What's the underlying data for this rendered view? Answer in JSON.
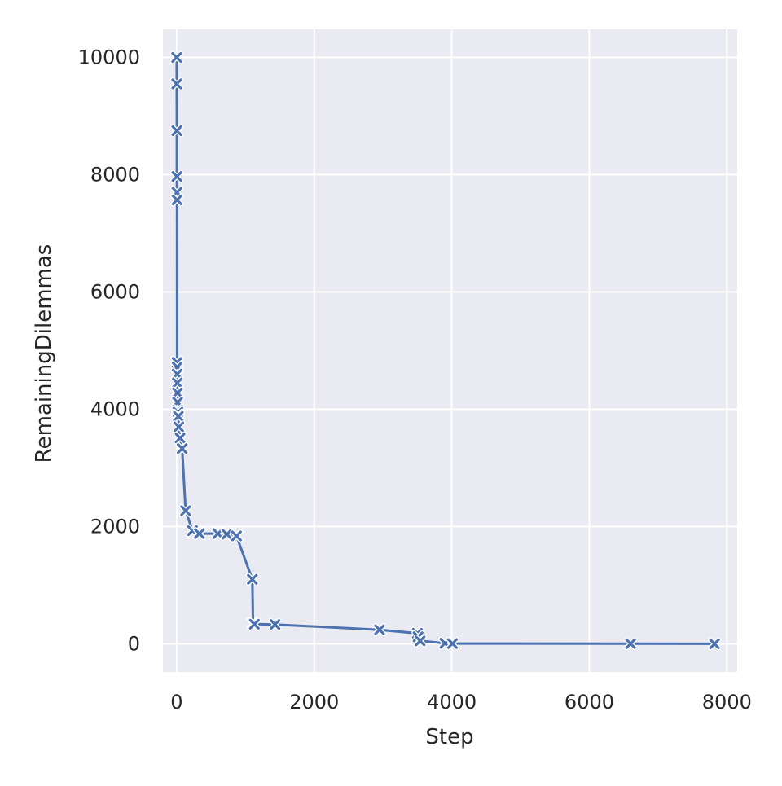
{
  "chart_data": {
    "type": "line",
    "xlabel": "Step",
    "ylabel": "RemainingDilemmas",
    "xlim": [
      -200,
      8150
    ],
    "ylim": [
      -480,
      10480
    ],
    "xticks": [
      0,
      2000,
      4000,
      6000,
      8000
    ],
    "yticks": [
      0,
      2000,
      4000,
      6000,
      8000,
      10000
    ],
    "grid": true,
    "marker": "x",
    "colors": {
      "line": "#4c72b0",
      "plot_background": "#eaeaf2",
      "grid": "#ffffff"
    },
    "series": [
      {
        "x": [
          0,
          1,
          2,
          3,
          4,
          5,
          6,
          7,
          8,
          10,
          12,
          14,
          16,
          18,
          20,
          25,
          30,
          50,
          80,
          130,
          230,
          330,
          600,
          730,
          870,
          1100,
          1110,
          1120,
          1130,
          1430,
          2950,
          3500,
          3510,
          3540,
          3900,
          4010,
          6600,
          7820
        ],
        "y": [
          10000,
          9550,
          8750,
          7970,
          7700,
          7570,
          4800,
          4720,
          4600,
          4450,
          4280,
          4120,
          3980,
          3950,
          3900,
          3880,
          3700,
          3510,
          3330,
          2270,
          1930,
          1880,
          1880,
          1870,
          1840,
          1100,
          350,
          340,
          335,
          330,
          240,
          180,
          120,
          50,
          10,
          5,
          2,
          0
        ]
      }
    ]
  }
}
